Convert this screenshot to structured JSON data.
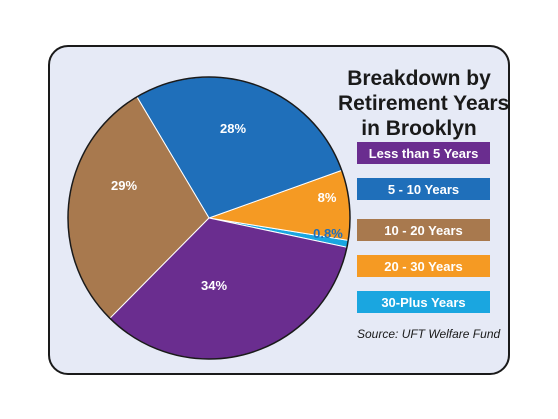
{
  "chart_data": {
    "type": "pie",
    "title": [
      "Breakdown by",
      "Retirement Years",
      "in Brooklyn"
    ],
    "slices": [
      {
        "label": "Less than 5 Years",
        "value": 34,
        "display": "34%",
        "color": "#6a2d8f"
      },
      {
        "label": "5 - 10 Years",
        "value": 28,
        "display": "28%",
        "color": "#1f6fba"
      },
      {
        "label": "10 - 20 Years",
        "value": 29,
        "display": "29%",
        "color": "#a8794e"
      },
      {
        "label": "20 - 30 Years",
        "value": 8,
        "display": "8%",
        "color": "#f59a23"
      },
      {
        "label": "30-Plus Years",
        "value": 0.8,
        "display": "0.8%",
        "color": "#1aa6e0"
      }
    ],
    "legend_position": "right",
    "source": "Source: UFT Welfare Fund"
  }
}
